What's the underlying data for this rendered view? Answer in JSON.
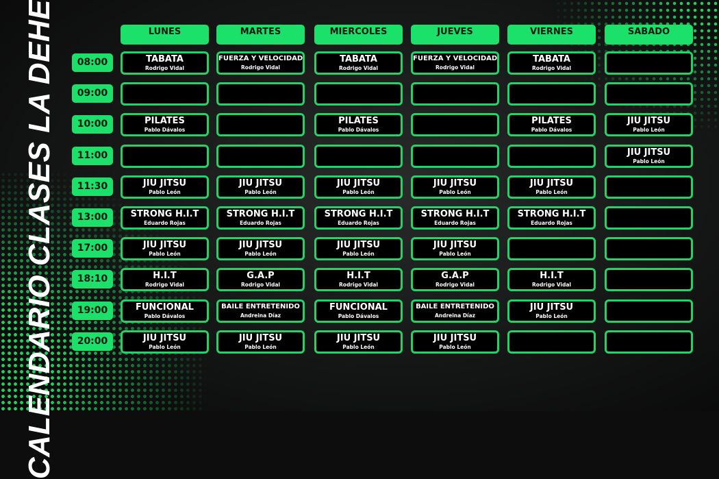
{
  "title": "CALENDARIO CLASES LA DEHESA",
  "colors": {
    "accent": "#1be06a",
    "cell_border": "#22d467",
    "background": "#0d0d0d"
  },
  "days": [
    "LUNES",
    "MARTES",
    "MIERCOLES",
    "JUEVES",
    "VIERNES",
    "SABADO"
  ],
  "times": [
    "08:00",
    "09:00",
    "10:00",
    "11:00",
    "11:30",
    "13:00",
    "17:00",
    "18:10",
    "19:00",
    "20:00"
  ],
  "rows": [
    [
      [
        "TABATA",
        "Rodrigo Vidal"
      ],
      [
        "FUERZA Y VELOCIDAD",
        "Rodrigo Vidal"
      ],
      [
        "TABATA",
        "Rodrigo Vidal"
      ],
      [
        "FUERZA Y VELOCIDAD",
        "Rodrigo Vidal"
      ],
      [
        "TABATA",
        "Rodrigo Vidal"
      ],
      null
    ],
    [
      null,
      null,
      null,
      null,
      null,
      null
    ],
    [
      [
        "PILATES",
        "Pablo Dávalos"
      ],
      null,
      [
        "PILATES",
        "Pablo Dávalos"
      ],
      null,
      [
        "PILATES",
        "Pablo Dávalos"
      ],
      [
        "JIU JITSU",
        "Pablo León"
      ]
    ],
    [
      null,
      null,
      null,
      null,
      null,
      [
        "JIU JITSU",
        "Pablo León"
      ]
    ],
    [
      [
        "JIU JITSU",
        "Pablo León"
      ],
      [
        "JIU JITSU",
        "Pablo León"
      ],
      [
        "JIU JITSU",
        "Pablo León"
      ],
      [
        "JIU JITSU",
        "Pablo León"
      ],
      [
        "JIU JITSU",
        "Pablo León"
      ],
      null
    ],
    [
      [
        "STRONG H.I.T",
        "Eduardo Rojas"
      ],
      [
        "STRONG H.I.T",
        "Eduardo Rojas"
      ],
      [
        "STRONG H.I.T",
        "Eduardo Rojas"
      ],
      [
        "STRONG H.I.T",
        "Eduardo Rojas"
      ],
      [
        "STRONG H.I.T",
        "Eduardo Rojas"
      ],
      null
    ],
    [
      [
        "JIU JITSU",
        "Pablo León"
      ],
      [
        "JIU JITSU",
        "Pablo León"
      ],
      [
        "JIU JITSU",
        "Pablo León"
      ],
      [
        "JIU JITSU",
        "Pablo León"
      ],
      null,
      null
    ],
    [
      [
        "H.I.T",
        "Rodrigo Vidal"
      ],
      [
        "G.A.P",
        "Rodrigo Vidal"
      ],
      [
        "H.I.T",
        "Rodrigo Vidal"
      ],
      [
        "G.A.P",
        "Rodrigo Vidal"
      ],
      [
        "H.I.T",
        "Rodrigo Vidal"
      ],
      null
    ],
    [
      [
        "FUNCIONAL",
        "Pablo Dávalos"
      ],
      [
        "BAILE ENTRETENIDO",
        "Andreina Díaz"
      ],
      [
        "FUNCIONAL",
        "Pablo Dávalos"
      ],
      [
        "BAILE ENTRETENIDO",
        "Andreina Díaz"
      ],
      [
        "JIU JITSU",
        "Pablo León"
      ],
      null
    ],
    [
      [
        "JIU JITSU",
        "Pablo León"
      ],
      [
        "JIU JITSU",
        "Pablo León"
      ],
      [
        "JIU JITSU",
        "Pablo León"
      ],
      [
        "JIU JITSU",
        "Pablo León"
      ],
      null,
      null
    ]
  ]
}
